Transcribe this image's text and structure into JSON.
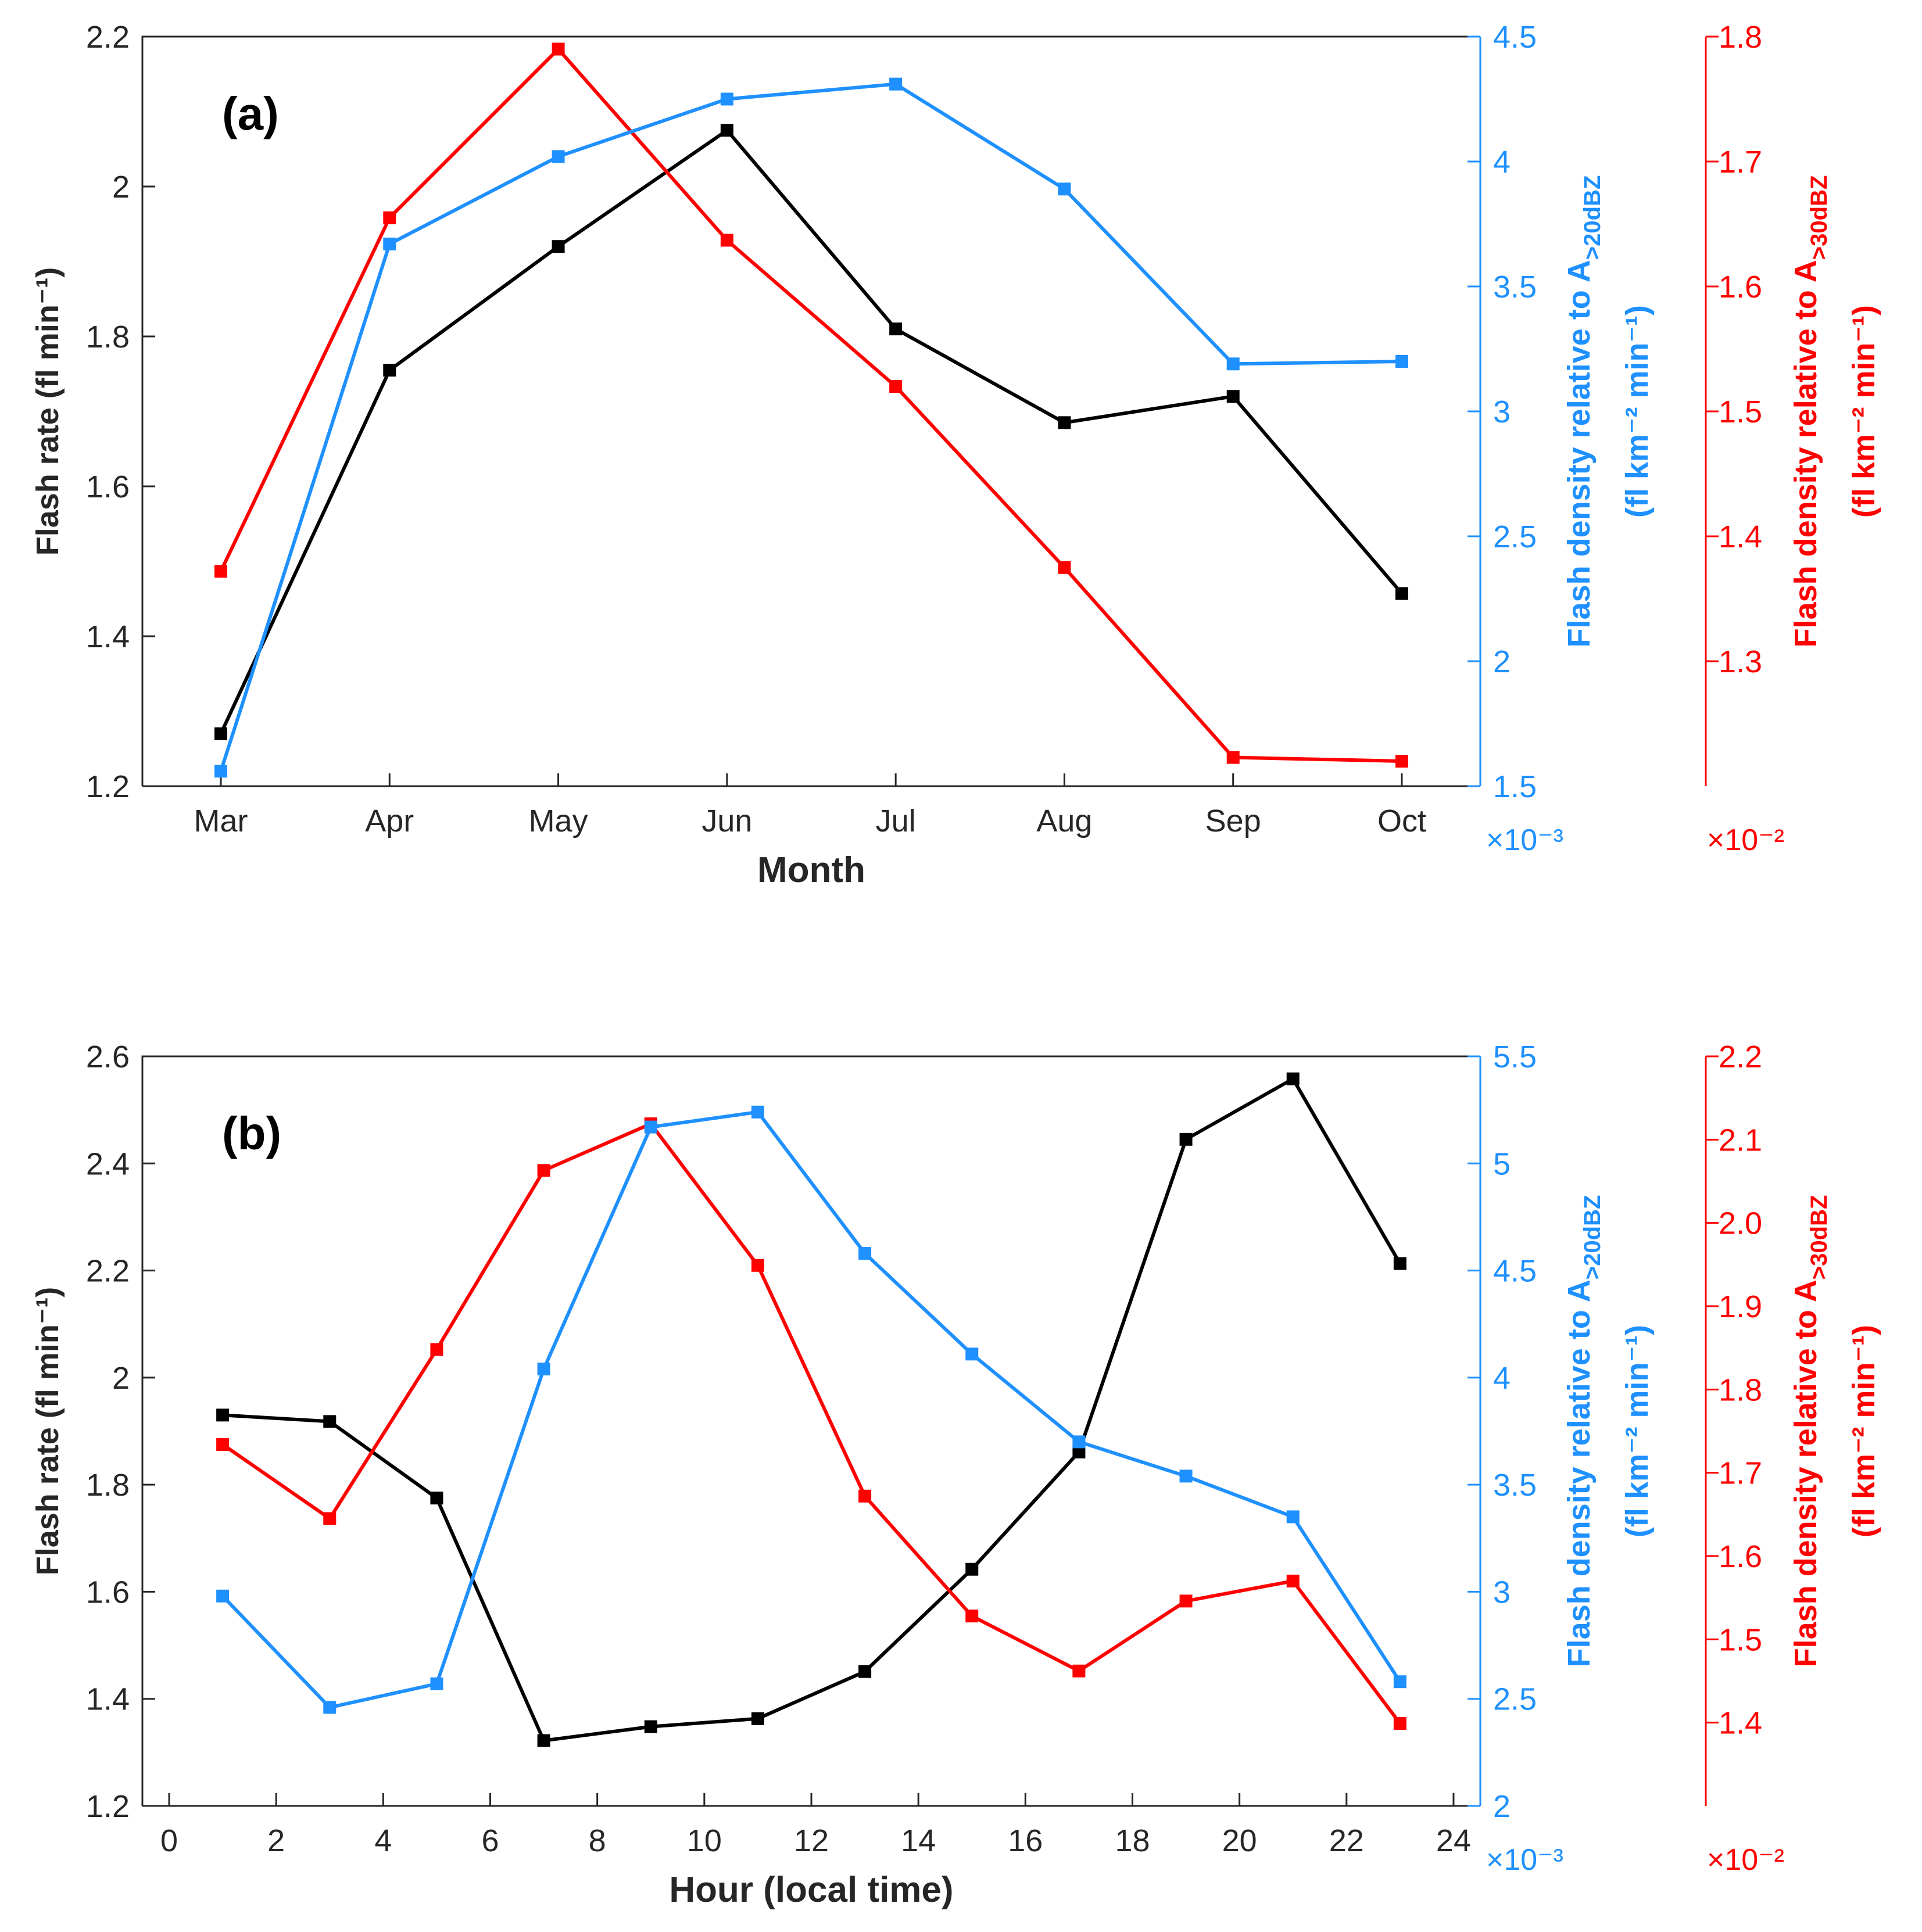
{
  "colors": {
    "black": "#000000",
    "blue": "#1E90FF",
    "red": "#FF0000"
  },
  "chart_data": [
    {
      "type": "line",
      "panel_label": "(a)",
      "xlabel": "Month",
      "x_kind": "category",
      "categories": [
        "Mar",
        "Apr",
        "May",
        "Jun",
        "Jul",
        "Aug",
        "Sep",
        "Oct"
      ],
      "axes": {
        "left": {
          "label": "Flash rate (fl min⁻¹)",
          "ylim": [
            1.2,
            2.2
          ],
          "ticks": [
            "1.2",
            "1.4",
            "1.6",
            "1.8",
            "2",
            "2.2"
          ],
          "color": "#000000"
        },
        "right1": {
          "label_main": "Flash density relative to A",
          "label_sub": ">20dBZ",
          "label_units": "(fl km⁻² min⁻¹)",
          "ylim": [
            1.5,
            4.5
          ],
          "ticks": [
            "1.5",
            "2",
            "2.5",
            "3",
            "3.5",
            "4",
            "4.5"
          ],
          "exponent": "×10⁻³",
          "color": "#1E90FF"
        },
        "right2": {
          "label_main": "Flash density relative to A",
          "label_sub": ">30dBZ",
          "label_units": "(fl km⁻² min⁻¹)",
          "ylim": [
            1.2,
            1.8
          ],
          "ticks": [
            "1.3",
            "1.4",
            "1.5",
            "1.6",
            "1.7",
            "1.8"
          ],
          "exponent": "×10⁻²",
          "color": "#FF0000"
        }
      },
      "series": [
        {
          "name": "Flash rate",
          "axis": "left",
          "color": "#000000",
          "values": [
            1.27,
            1.755,
            1.92,
            2.075,
            1.81,
            1.685,
            1.72,
            1.457
          ]
        },
        {
          "name": "Flash density >20dBZ",
          "axis": "right1",
          "color": "#1E90FF",
          "values": [
            1.56,
            3.67,
            4.02,
            4.25,
            4.31,
            3.89,
            3.19,
            3.2
          ]
        },
        {
          "name": "Flash density >30dBZ",
          "axis": "right2",
          "color": "#FF0000",
          "values": [
            1.372,
            1.655,
            1.79,
            1.637,
            1.52,
            1.375,
            1.223,
            1.22
          ]
        }
      ]
    },
    {
      "type": "line",
      "panel_label": "(b)",
      "xlabel": "Hour (local time)",
      "x_kind": "numeric",
      "xlim": [
        -0.5,
        24.5
      ],
      "xticks": [
        "0",
        "2",
        "4",
        "6",
        "8",
        "10",
        "12",
        "14",
        "16",
        "18",
        "20",
        "22",
        "24"
      ],
      "x": [
        1,
        3,
        5,
        7,
        9,
        11,
        13,
        15,
        17,
        19,
        21,
        23
      ],
      "axes": {
        "left": {
          "label": "Flash rate (fl min⁻¹)",
          "ylim": [
            1.2,
            2.6
          ],
          "ticks": [
            "1.2",
            "1.4",
            "1.6",
            "1.8",
            "2",
            "2.2",
            "2.4",
            "2.6"
          ],
          "color": "#000000"
        },
        "right1": {
          "label_main": "Flash density relative to A",
          "label_sub": ">20dBZ",
          "label_units": "(fl km⁻² min⁻¹)",
          "ylim": [
            2,
            5.5
          ],
          "ticks": [
            "2",
            "2.5",
            "3",
            "3.5",
            "4",
            "4.5",
            "5",
            "5.5"
          ],
          "exponent": "×10⁻³",
          "color": "#1E90FF"
        },
        "right2": {
          "label_main": "Flash density relative to A",
          "label_sub": ">30dBZ",
          "label_units": "(fl km⁻² min⁻¹)",
          "ylim": [
            1.3,
            2.2
          ],
          "ticks": [
            "1.4",
            "1.5",
            "1.6",
            "1.7",
            "1.8",
            "1.9",
            "2.0",
            "2.1",
            "2.2"
          ],
          "exponent": "×10⁻²",
          "color": "#FF0000"
        }
      },
      "series": [
        {
          "name": "Flash rate",
          "axis": "left",
          "color": "#000000",
          "values": [
            1.93,
            1.918,
            1.775,
            1.322,
            1.348,
            1.363,
            1.451,
            1.642,
            1.861,
            2.445,
            2.558,
            2.213
          ]
        },
        {
          "name": "Flash density >20dBZ",
          "axis": "right1",
          "color": "#1E90FF",
          "values": [
            2.98,
            2.46,
            2.57,
            4.04,
            5.17,
            5.24,
            4.58,
            4.11,
            3.7,
            3.54,
            3.35,
            2.58
          ]
        },
        {
          "name": "Flash density >30dBZ",
          "axis": "right2",
          "color": "#FF0000",
          "values": [
            1.734,
            1.645,
            1.848,
            2.063,
            2.119,
            1.949,
            1.672,
            1.528,
            1.462,
            1.546,
            1.57,
            1.399
          ]
        }
      ]
    }
  ]
}
